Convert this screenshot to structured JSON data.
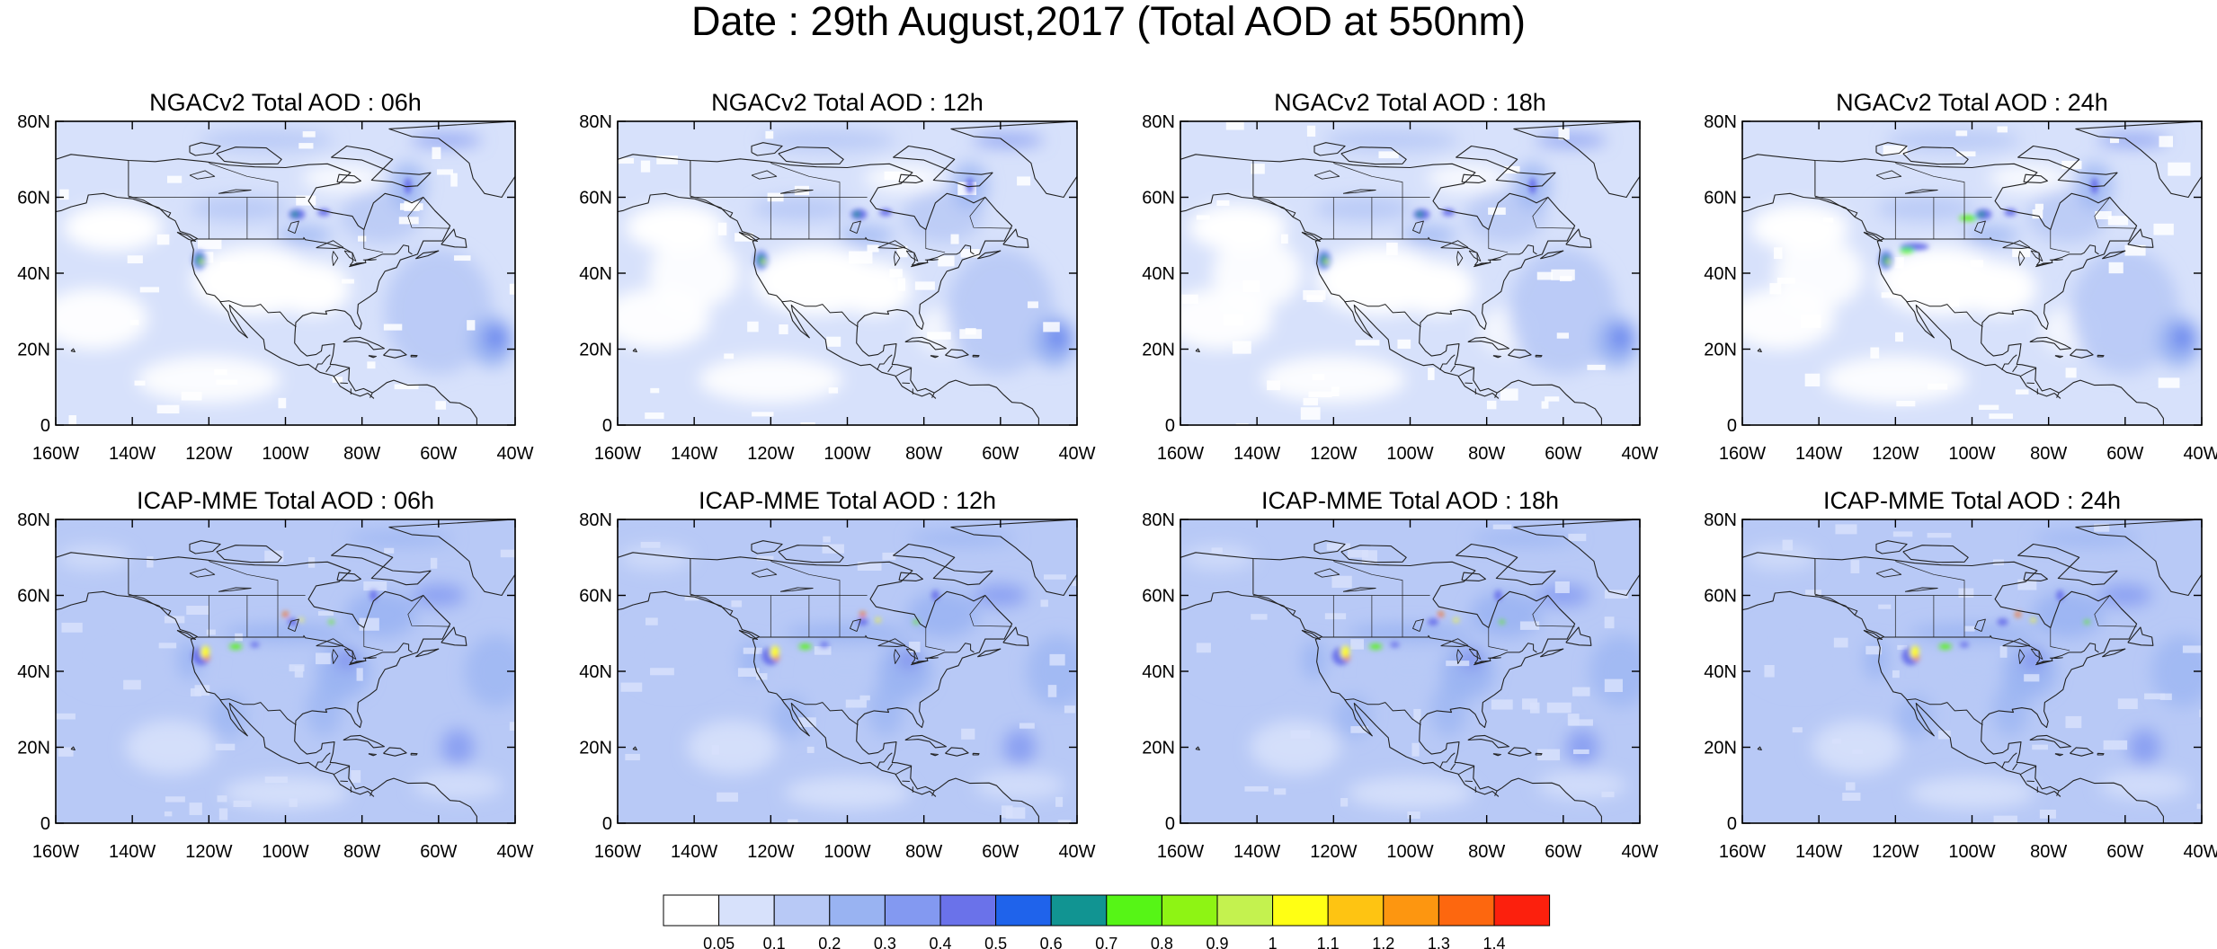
{
  "title": "Date : 29th August,2017 (Total AOD at 550nm)",
  "panels": [
    {
      "title": "NGACv2 Total AOD : 06h",
      "model": "NGACv2",
      "hour": "06h"
    },
    {
      "title": "NGACv2 Total AOD : 12h",
      "model": "NGACv2",
      "hour": "12h"
    },
    {
      "title": "NGACv2 Total AOD : 18h",
      "model": "NGACv2",
      "hour": "18h"
    },
    {
      "title": "NGACv2 Total AOD : 24h",
      "model": "NGACv2",
      "hour": "24h"
    },
    {
      "title": "ICAP-MME Total AOD : 06h",
      "model": "ICAP-MME",
      "hour": "06h"
    },
    {
      "title": "ICAP-MME Total AOD : 12h",
      "model": "ICAP-MME",
      "hour": "12h"
    },
    {
      "title": "ICAP-MME Total AOD : 18h",
      "model": "ICAP-MME",
      "hour": "18h"
    },
    {
      "title": "ICAP-MME Total AOD : 24h",
      "model": "ICAP-MME",
      "hour": "24h"
    }
  ],
  "lat_ticks": [
    "80N",
    "60N",
    "40N",
    "20N",
    "0"
  ],
  "lat_values": [
    80,
    60,
    40,
    20,
    0
  ],
  "lon_ticks": [
    "160W",
    "140W",
    "120W",
    "100W",
    "80W",
    "60W",
    "40W"
  ],
  "lon_values": [
    -160,
    -140,
    -120,
    -100,
    -80,
    -60,
    -40
  ],
  "map_extent": {
    "lon": [
      -160,
      -40
    ],
    "lat": [
      0,
      80
    ]
  },
  "colorbar": {
    "labels": [
      "0.05",
      "0.1",
      "0.2",
      "0.3",
      "0.4",
      "0.5",
      "0.6",
      "0.7",
      "0.8",
      "0.9",
      "1",
      "1.1",
      "1.2",
      "1.3",
      "1.4"
    ],
    "colors": [
      "#ffffff",
      "#d7e1fb",
      "#b8c9f6",
      "#99b3f2",
      "#8399f1",
      "#6a72ea",
      "#1f63eb",
      "#119492",
      "#56f516",
      "#8ef414",
      "#c4f24f",
      "#ffff14",
      "#fec412",
      "#fd9610",
      "#fd670f",
      "#fc200d"
    ]
  }
}
